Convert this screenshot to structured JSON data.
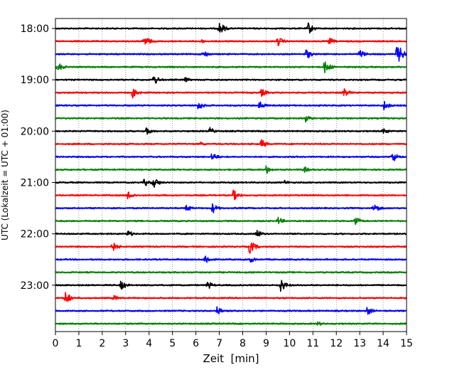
{
  "chart_data": {
    "type": "line",
    "title": "",
    "xlabel": "Zeit  [min]",
    "ylabel": "UTC (Lokalzeit = UTC + 01:00)",
    "xlim": [
      0,
      15
    ],
    "x_ticks": [
      "0",
      "1",
      "2",
      "3",
      "4",
      "5",
      "6",
      "7",
      "8",
      "9",
      "10",
      "11",
      "12",
      "13",
      "14",
      "15"
    ],
    "y_tick_labels": [
      "18:00",
      "19:00",
      "20:00",
      "21:00",
      "22:00",
      "23:00"
    ],
    "grid": {
      "vertical": true,
      "style": "dotted"
    },
    "trace_colors": [
      "#000000",
      "#ff0000",
      "#0000ff",
      "#008000"
    ],
    "series": [
      {
        "row": "18:00",
        "color": "#000000",
        "events": [
          [
            7.0,
            0.55
          ],
          [
            10.8,
            0.5
          ]
        ]
      },
      {
        "row": "18:15",
        "color": "#ff0000",
        "events": [
          [
            3.8,
            0.5
          ],
          [
            6.2,
            0.2
          ],
          [
            9.5,
            0.4
          ],
          [
            11.7,
            0.3
          ]
        ]
      },
      {
        "row": "18:30",
        "color": "#0000ff",
        "events": [
          [
            6.3,
            0.35
          ],
          [
            10.7,
            0.45
          ],
          [
            13.0,
            0.4
          ],
          [
            14.6,
            0.9
          ]
        ]
      },
      {
        "row": "18:45",
        "color": "#008000",
        "events": [
          [
            0.1,
            0.4
          ],
          [
            11.5,
            0.55
          ]
        ]
      },
      {
        "row": "19:00",
        "color": "#000000",
        "events": [
          [
            4.2,
            0.45
          ],
          [
            5.5,
            0.25
          ]
        ]
      },
      {
        "row": "19:15",
        "color": "#ff0000",
        "events": [
          [
            3.3,
            0.45
          ],
          [
            8.8,
            0.35
          ],
          [
            12.3,
            0.4
          ]
        ]
      },
      {
        "row": "19:30",
        "color": "#0000ff",
        "events": [
          [
            6.1,
            0.4
          ],
          [
            8.7,
            0.4
          ],
          [
            14.0,
            0.45
          ]
        ]
      },
      {
        "row": "19:45",
        "color": "#008000",
        "events": [
          [
            10.7,
            0.35
          ]
        ]
      },
      {
        "row": "20:00",
        "color": "#000000",
        "events": [
          [
            3.9,
            0.35
          ],
          [
            6.6,
            0.3
          ],
          [
            14.0,
            0.3
          ]
        ]
      },
      {
        "row": "20:15",
        "color": "#ff0000",
        "events": [
          [
            6.2,
            0.2
          ],
          [
            8.8,
            0.4
          ]
        ]
      },
      {
        "row": "20:30",
        "color": "#0000ff",
        "events": [
          [
            6.7,
            0.4
          ],
          [
            14.4,
            0.45
          ]
        ]
      },
      {
        "row": "20:45",
        "color": "#008000",
        "events": [
          [
            9.0,
            0.35
          ],
          [
            10.6,
            0.3
          ]
        ]
      },
      {
        "row": "21:00",
        "color": "#000000",
        "events": [
          [
            3.8,
            0.35
          ],
          [
            4.2,
            0.45
          ],
          [
            9.8,
            0.2
          ]
        ]
      },
      {
        "row": "21:15",
        "color": "#ff0000",
        "events": [
          [
            3.1,
            0.4
          ],
          [
            7.6,
            0.45
          ]
        ]
      },
      {
        "row": "21:30",
        "color": "#0000ff",
        "events": [
          [
            5.6,
            0.3
          ],
          [
            6.7,
            0.45
          ],
          [
            13.6,
            0.45
          ]
        ]
      },
      {
        "row": "21:45",
        "color": "#008000",
        "events": [
          [
            9.5,
            0.35
          ],
          [
            12.8,
            0.45
          ]
        ]
      },
      {
        "row": "22:00",
        "color": "#000000",
        "events": [
          [
            3.1,
            0.3
          ],
          [
            8.6,
            0.35
          ]
        ]
      },
      {
        "row": "22:15",
        "color": "#ff0000",
        "events": [
          [
            2.4,
            0.5
          ],
          [
            8.3,
            0.6
          ]
        ]
      },
      {
        "row": "22:30",
        "color": "#0000ff",
        "events": [
          [
            6.4,
            0.45
          ],
          [
            8.3,
            0.3
          ]
        ]
      },
      {
        "row": "22:45",
        "color": "#008000",
        "events": []
      },
      {
        "row": "23:00",
        "color": "#000000",
        "events": [
          [
            2.8,
            0.4
          ],
          [
            6.5,
            0.35
          ],
          [
            9.6,
            0.6
          ]
        ]
      },
      {
        "row": "23:15",
        "color": "#ff0000",
        "events": [
          [
            0.4,
            0.6
          ],
          [
            2.5,
            0.25
          ]
        ]
      },
      {
        "row": "23:30",
        "color": "#0000ff",
        "events": [
          [
            6.9,
            0.35
          ],
          [
            13.3,
            0.4
          ]
        ]
      },
      {
        "row": "23:45",
        "color": "#008000",
        "events": [
          [
            11.2,
            0.2
          ]
        ]
      }
    ]
  }
}
